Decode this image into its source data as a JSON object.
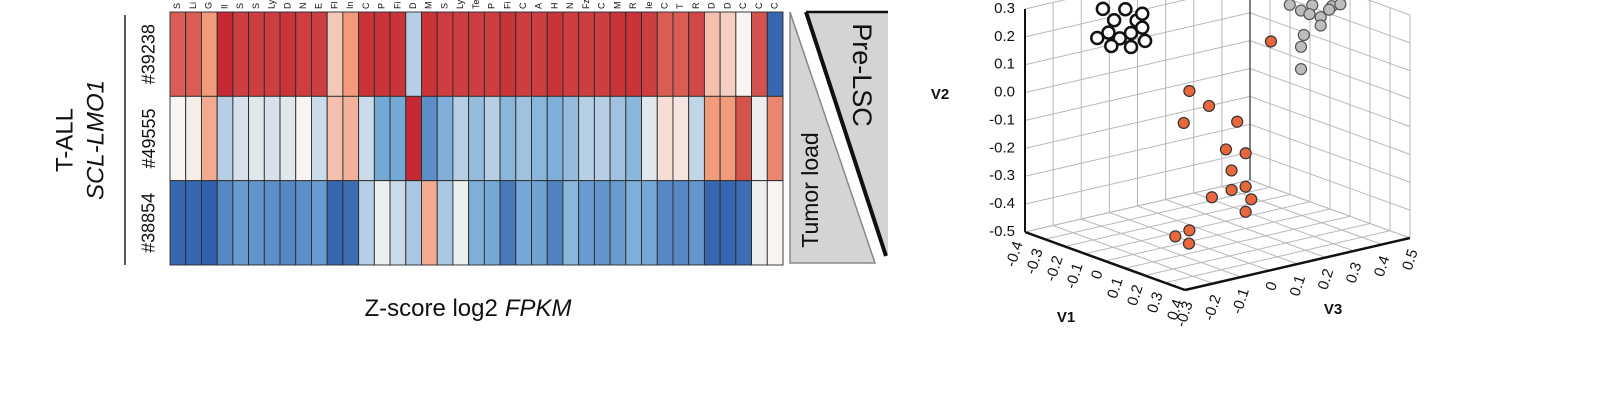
{
  "chart_data": [
    {
      "type": "heatmap",
      "columns": [
        "S",
        "Li",
        "G",
        "Il",
        "S",
        "S",
        "Ly",
        "D",
        "N",
        "E",
        "Fl",
        "In",
        "C",
        "P",
        "Fi",
        "D",
        "M",
        "S",
        "Ly",
        "Te",
        "P",
        "Fi",
        "C",
        "A",
        "H",
        "N",
        "Fz",
        "C",
        "M",
        "R",
        "Ie",
        "C",
        "T",
        "R",
        "D",
        "D",
        "C",
        "C",
        "C"
      ],
      "rows": [
        "#39238",
        "#49555",
        "#38854"
      ],
      "z": [
        [
          0.9,
          0.9,
          0.6,
          1.15,
          1.05,
          1.05,
          1.05,
          1.1,
          1.05,
          1.05,
          0.3,
          0.6,
          1.1,
          1.1,
          1.1,
          -0.3,
          1.1,
          1.05,
          1.05,
          1.05,
          1.05,
          1.1,
          1.05,
          1.05,
          1.1,
          1.05,
          1.05,
          1.05,
          1.1,
          1.1,
          1.05,
          0.9,
          0.9,
          1.0,
          0.35,
          0.25,
          0.0,
          0.95,
          -1.1
        ],
        [
          0.0,
          0.05,
          0.5,
          -0.3,
          -0.15,
          -0.1,
          -0.15,
          -0.1,
          0.0,
          -0.2,
          0.35,
          0.45,
          -0.2,
          -0.6,
          -0.6,
          1.15,
          -0.8,
          -0.55,
          -0.3,
          -0.45,
          -0.3,
          -0.5,
          -0.4,
          -0.5,
          -0.55,
          -0.45,
          -0.3,
          -0.3,
          -0.4,
          -0.5,
          -0.1,
          0.15,
          0.1,
          -0.25,
          0.6,
          0.6,
          0.95,
          -0.05,
          0.7
        ],
        [
          -1.1,
          -1.1,
          -1.15,
          -0.85,
          -0.7,
          -0.75,
          -0.8,
          -0.85,
          -0.8,
          -0.7,
          -1.1,
          -1.05,
          -0.3,
          -0.05,
          -0.2,
          -0.35,
          0.5,
          -0.35,
          -0.05,
          -0.55,
          -0.6,
          -0.95,
          -0.6,
          -0.65,
          -0.9,
          -0.5,
          -0.7,
          -0.75,
          -0.7,
          -0.55,
          -0.6,
          -0.85,
          -0.85,
          -0.75,
          -1.1,
          -1.1,
          -1.05,
          -0.05,
          0.0
        ]
      ],
      "colormap": {
        "stops": [
          -1.2,
          -0.6,
          0,
          0.6,
          1.2
        ],
        "colors": [
          "#2b5aa8",
          "#74a9d6",
          "#f7f4f2",
          "#f19b7c",
          "#c11f2c"
        ]
      },
      "row_group_labels": [
        "T-ALL",
        "SCL-LMO1"
      ],
      "xlabel": "Z-score log2",
      "xlabel_emphasis": "FPKM",
      "annotations": [
        "Pre-LSC",
        "Tumor load"
      ]
    },
    {
      "type": "scatter3d",
      "xlabel": "V1",
      "ylabel": "V2",
      "zlabel": "V3",
      "xlim": [
        -0.4,
        0.4
      ],
      "ylim": [
        -0.5,
        0.3
      ],
      "zlim": [
        -0.3,
        0.5
      ],
      "xticks": [
        -0.4,
        -0.3,
        -0.2,
        -0.1,
        0,
        0.1,
        0.2,
        0.3,
        0.4
      ],
      "yticks": [
        -0.5,
        -0.4,
        -0.3,
        -0.2,
        -0.1,
        {
          "value": 0,
          "label": "0.0"
        },
        0.1,
        0.2,
        0.3
      ],
      "zticks": [
        -0.3,
        -0.2,
        -0.1,
        0,
        0.1,
        0.2,
        0.3,
        0.4,
        0.5
      ],
      "grid": true,
      "series": [
        {
          "color": "#ffffff",
          "edgecolor": "#111111",
          "x": [
            -0.32,
            -0.32,
            -0.32,
            -0.32,
            -0.32,
            -0.32,
            -0.32,
            -0.32,
            -0.32,
            -0.32,
            -0.32,
            -0.32,
            -0.32
          ],
          "y": [
            0.27,
            0.25,
            0.22,
            0.2,
            0.22,
            0.18,
            0.15,
            0.16,
            0.17,
            0.17,
            0.13,
            0.11,
            0.12
          ],
          "z": [
            -0.08,
            0.0,
            -0.04,
            0.04,
            0.06,
            -0.06,
            -0.02,
            0.02,
            0.06,
            -0.1,
            -0.05,
            0.02,
            0.07
          ]
        },
        {
          "color": "#bdbdbd",
          "edgecolor": "#555555",
          "x": [
            0.08,
            0.08,
            0.08,
            0.08,
            0.08,
            0.08,
            0.08,
            0.08,
            0.08,
            0.08,
            0.08,
            0.08
          ],
          "y": [
            0.27,
            0.28,
            0.23,
            0.26,
            0.26,
            0.25,
            0.2,
            0.18,
            0.14,
            0.06,
            0.25,
            0.3
          ],
          "z": [
            0.34,
            0.38,
            0.41,
            0.45,
            0.48,
            0.37,
            0.41,
            0.35,
            0.34,
            0.34,
            0.44,
            0.3
          ]
        },
        {
          "color": "#e8673c",
          "edgecolor": "#333333",
          "x": [
            0,
            0,
            0,
            0,
            0,
            0,
            0,
            0,
            0,
            0,
            0,
            0,
            0,
            0,
            0,
            0.04
          ],
          "y": [
            0.15,
            0.04,
            -0.03,
            -0.07,
            -0.11,
            -0.2,
            -0.23,
            -0.28,
            -0.35,
            -0.35,
            -0.4,
            -0.36,
            -0.44,
            -0.47,
            -0.46,
            -0.49
          ],
          "z": [
            0.29,
            0.0,
            0.07,
            -0.02,
            0.17,
            0.13,
            0.2,
            0.15,
            0.2,
            0.15,
            0.22,
            0.08,
            0.2,
            -0.05,
            0.0,
            -0.03
          ]
        }
      ]
    }
  ]
}
